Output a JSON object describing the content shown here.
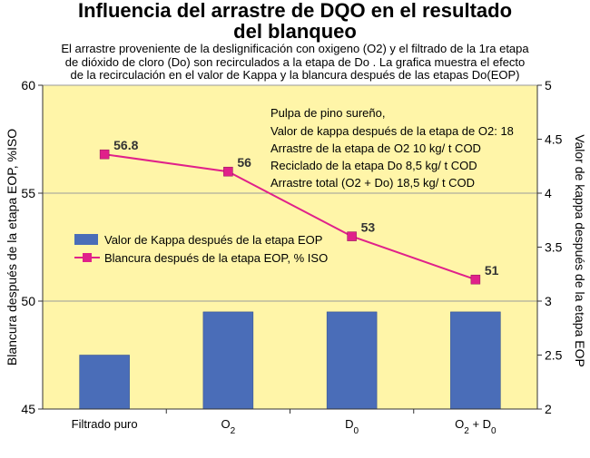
{
  "title_line1": "Influencia del arrastre de DQO en el resultado",
  "title_line2": "del blanqueo",
  "subtitle_lines": [
    "El arrastre proveniente de la deslignificación con oxigeno (O2) y el filtrado de la 1ra etapa",
    "de dióxido de cloro (Do) son recirculados a la etapa de Do . La grafica muestra el efecto",
    "de la recirculación en el valor de Kappa  y la blancura después de las etapas Do(EOP)"
  ],
  "annotation_lines": [
    "Pulpa de pino sureño,",
    "Valor de kappa después de la etapa de O2: 18",
    "Arrastre de la etapa de O2  10 kg/ t  COD",
    "Reciclado de la etapa Do  8,5 kg/ t COD",
    "Arrastre total (O2 + Do) 18,5 kg/ t  COD"
  ],
  "colors": {
    "plot_bg": "#FFF5A8",
    "bar": "#4A6DB8",
    "line": "#E0218A",
    "grid": "#9A9A9A"
  },
  "chart_data": {
    "type": "bar+line",
    "categories": [
      {
        "base": "Filtrado puro",
        "sub": ""
      },
      {
        "base": "O",
        "sub": "2"
      },
      {
        "base": "D",
        "sub": "0"
      },
      {
        "base": "O",
        "sub": "2",
        "rest": " + D",
        "sub2": "0"
      }
    ],
    "left_axis": {
      "label": "Blancura después de la etapa EOP, %ISO",
      "range": [
        45,
        60
      ],
      "ticks": [
        45,
        50,
        55,
        60
      ]
    },
    "right_axis": {
      "label": "Valor de kappa después de la etapa EOP",
      "range": [
        2,
        5
      ],
      "ticks": [
        "2",
        "2.5",
        "3",
        "3.5",
        "4",
        "4.5",
        "5"
      ],
      "tick_values": [
        2,
        2.5,
        3,
        3.5,
        4,
        4.5,
        5
      ]
    },
    "series": [
      {
        "name": "Valor de Kappa después de la etapa EOP",
        "kind": "bar",
        "axis": "right",
        "values": [
          2.5,
          2.9,
          2.9,
          2.9
        ]
      },
      {
        "name": "Blancura después de la etapa EOP, % ISO",
        "kind": "line",
        "axis": "left",
        "values": [
          56.8,
          56,
          53,
          51
        ],
        "labels": [
          "56.8",
          "56",
          "53",
          "51"
        ]
      }
    ],
    "legend_position": "middle-left",
    "grid": true
  }
}
